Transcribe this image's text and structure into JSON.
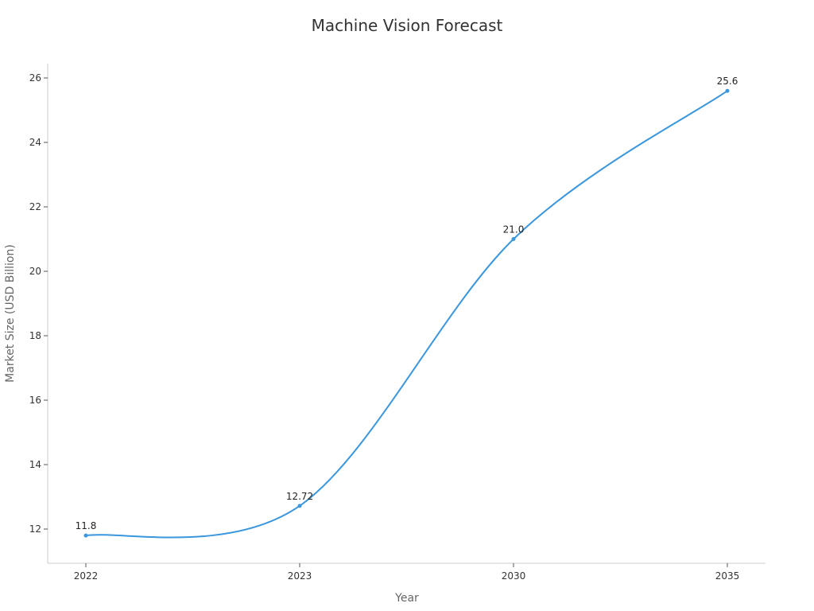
{
  "chart_data": {
    "type": "line",
    "title": "Machine Vision Forecast",
    "xlabel": "Year",
    "ylabel": "Market Size (USD Billion)",
    "categories": [
      "2022",
      "2023",
      "2030",
      "2035"
    ],
    "series": [
      {
        "values": [
          11.8,
          12.72,
          21.0,
          25.6
        ],
        "data_labels": [
          "11.8",
          "12.72",
          "21.0",
          "25.6"
        ],
        "color": "#3a96dd"
      }
    ],
    "y_ticks": [
      12,
      14,
      16,
      18,
      20,
      22,
      24,
      26
    ],
    "ylim": [
      11,
      26.5
    ],
    "grid": false,
    "smooth": true,
    "axis_color": "#cccccc"
  }
}
